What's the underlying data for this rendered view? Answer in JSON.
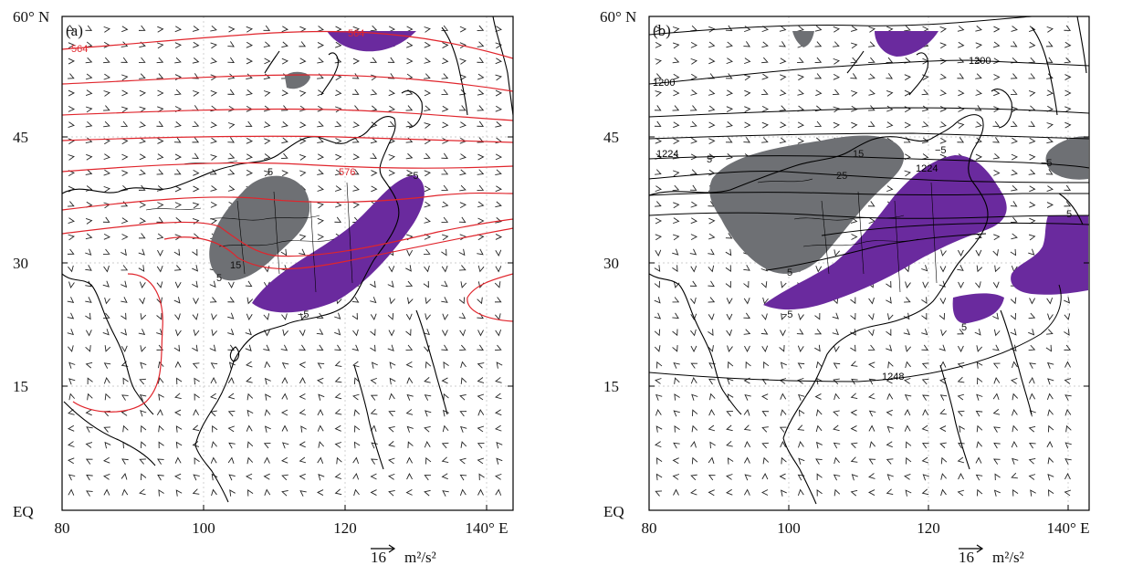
{
  "figure": {
    "shade_colors": {
      "positive": "#6e7074",
      "negative": "#6a2a9e"
    },
    "coastline_color": "#000000",
    "gridline_color": "#bfbfbf"
  },
  "panels": [
    {
      "id": "a",
      "label": "(a)",
      "contour_color": "#e0252c",
      "x_ticks": [
        "80",
        "100",
        "120",
        "140° E"
      ],
      "y_ticks": [
        "60° N",
        "45",
        "30",
        "15",
        "EQ"
      ],
      "ref_vector": {
        "number": "16",
        "unit": "m²/s²"
      },
      "contour_labels": [
        "564",
        "564",
        "576"
      ],
      "shade_labels": [
        "5",
        "15",
        "5",
        "−5",
        "−5"
      ]
    },
    {
      "id": "b",
      "label": "(b)",
      "contour_color": "#000000",
      "x_ticks": [
        "80",
        "100",
        "120",
        "140° E"
      ],
      "y_ticks": [
        "60° N",
        "45",
        "30",
        "15",
        "EQ"
      ],
      "ref_vector": {
        "number": "16",
        "unit": "m²/s²"
      },
      "contour_labels": [
        "1200",
        "1200",
        "1224",
        "1224",
        "1248"
      ],
      "shade_labels": [
        "5",
        "15",
        "25",
        "−5",
        "5",
        "5",
        "−5",
        "5",
        "−5"
      ]
    }
  ]
}
